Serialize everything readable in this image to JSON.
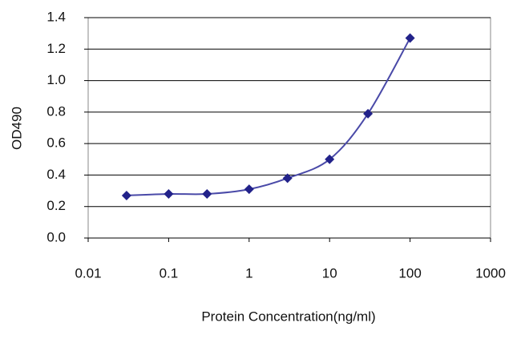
{
  "chart_data": {
    "type": "line",
    "x_label": "Protein Concentration(ng/ml)",
    "y_label": "OD490",
    "x": [
      0.03,
      0.1,
      0.3,
      1,
      3,
      10,
      30,
      100
    ],
    "series": [
      {
        "color": "#22228a",
        "values": [
          0.27,
          0.28,
          0.28,
          0.31,
          0.38,
          0.5,
          0.79,
          1.27
        ]
      }
    ],
    "xscale": "log",
    "xlim": [
      0.01,
      1000
    ],
    "xticks": [
      0.01,
      0.1,
      1,
      10,
      100,
      1000
    ],
    "ylim": [
      0,
      1.4
    ],
    "yticks": [
      {
        "value": 0,
        "label": "0.0"
      },
      0.2,
      0.4,
      0.6,
      0.8,
      {
        "value": 1,
        "label": "1.0"
      },
      1.2,
      1.4
    ],
    "grid": true
  }
}
